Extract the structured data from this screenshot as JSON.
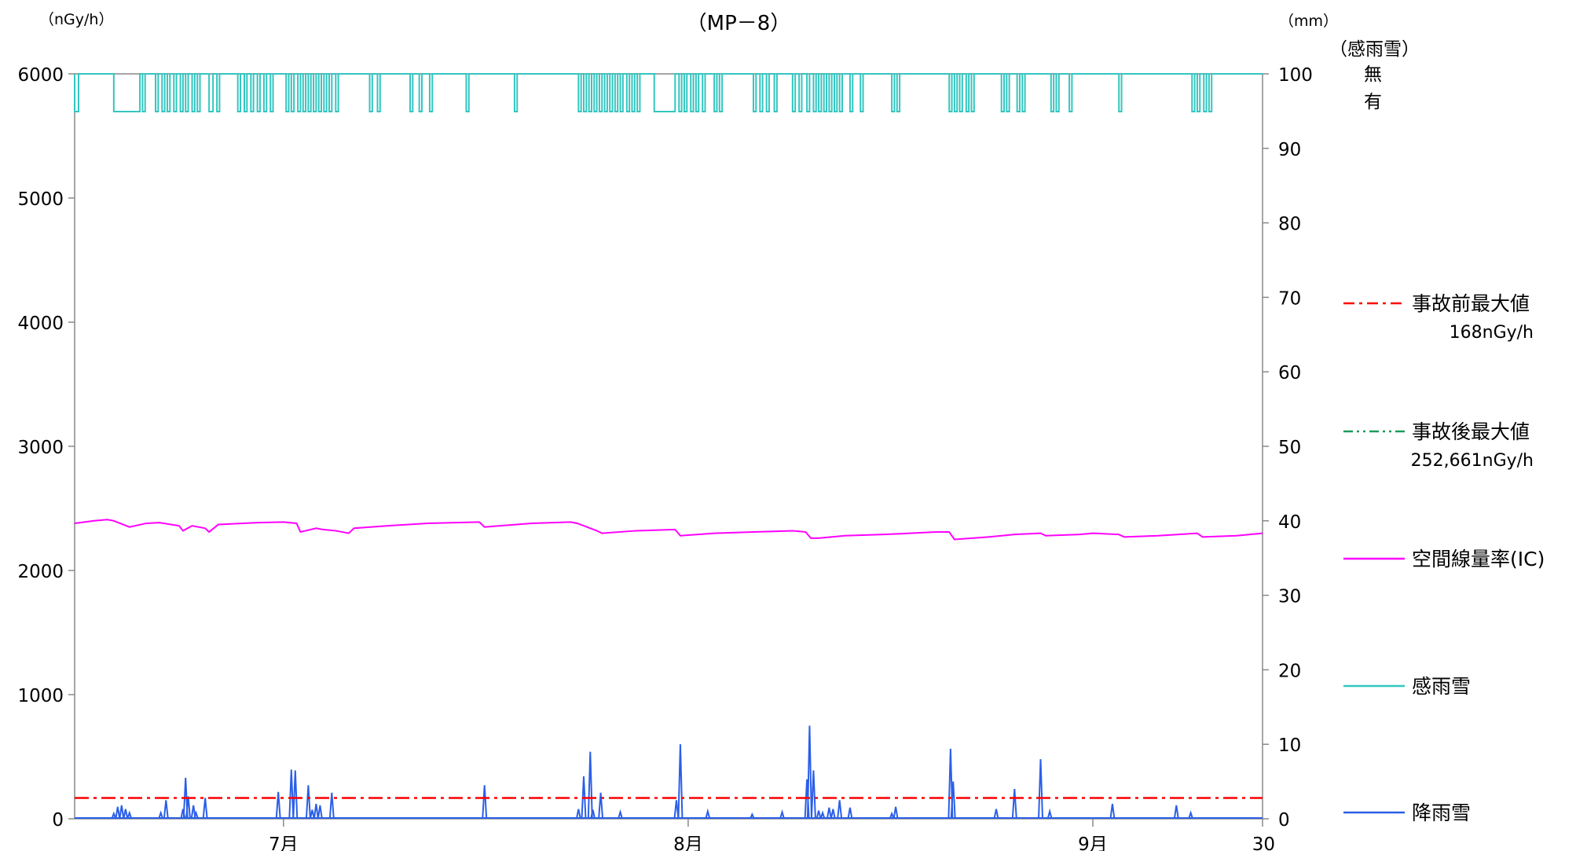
{
  "chart_data": {
    "type": "line",
    "title": "（MP－8）",
    "y_left_unit": "（nGy/h）",
    "y_right_unit": "（mm）",
    "y_right_extra": {
      "title": "（感雨雪）",
      "none": "無",
      "present": "有"
    },
    "ylim_left": [
      0,
      6000
    ],
    "ylim_right": [
      0,
      100
    ],
    "yticks_left": [
      "0",
      "1000",
      "2000",
      "3000",
      "4000",
      "5000",
      "6000"
    ],
    "yticks_right": [
      "0",
      "10",
      "20",
      "30",
      "40",
      "50",
      "60",
      "70",
      "80",
      "90",
      "100"
    ],
    "x_domain_days": [
      0,
      91
    ],
    "x_ticks": [
      {
        "label": "7月",
        "day": 16
      },
      {
        "label": "8月",
        "day": 47
      },
      {
        "label": "9月",
        "day": 78
      },
      {
        "label": "30",
        "day": 91
      }
    ],
    "grid": false,
    "legend_position": "right",
    "legend": [
      {
        "name": "事故前最大値",
        "sub": "168nGy/h",
        "color": "#ff0000",
        "dash": "dashdot"
      },
      {
        "name": "事故後最大値",
        "sub": "252,661nGy/h",
        "color": "#1f9a5a",
        "dash": "dashdotdot"
      },
      {
        "name": "空間線量率(IC)",
        "sub": "",
        "color": "#ff00ff",
        "dash": "solid"
      },
      {
        "name": "感雨雪",
        "sub": "",
        "color": "#33c6c0",
        "dash": "solid"
      },
      {
        "name": "降雨雪",
        "sub": "",
        "color": "#2b5fe8",
        "dash": "solid"
      }
    ],
    "pre_accident_max": 168,
    "series": [
      {
        "name": "空間線量率(IC)",
        "axis": "left",
        "color": "#ff00ff",
        "x": [
          0,
          1.5,
          2.5,
          3.0,
          4.2,
          5.5,
          6.5,
          8.0,
          8.3,
          9.0,
          10.0,
          10.3,
          11.0,
          14.0,
          16.0,
          17.0,
          17.3,
          18.5,
          19.0,
          20.0,
          21.0,
          21.4,
          24.0,
          27.0,
          31.0,
          31.4,
          35.0,
          38.0,
          38.5,
          40.0,
          40.4,
          43.0,
          46.0,
          46.4,
          49.0,
          52.0,
          55.0,
          56.0,
          56.4,
          57.0,
          59.0,
          62.0,
          63.0,
          66.0,
          67.0,
          67.4,
          70.0,
          72.0,
          74.0,
          74.4,
          77.0,
          78.0,
          80.0,
          80.4,
          83.0,
          86.0,
          86.4,
          89.0,
          91.0
        ],
        "values": [
          2380,
          2400,
          2410,
          2400,
          2350,
          2380,
          2385,
          2360,
          2320,
          2360,
          2340,
          2310,
          2370,
          2385,
          2390,
          2380,
          2310,
          2340,
          2330,
          2320,
          2300,
          2340,
          2360,
          2380,
          2390,
          2350,
          2380,
          2390,
          2380,
          2320,
          2300,
          2320,
          2330,
          2280,
          2300,
          2310,
          2320,
          2310,
          2260,
          2260,
          2280,
          2290,
          2295,
          2310,
          2310,
          2250,
          2270,
          2290,
          2300,
          2280,
          2290,
          2300,
          2290,
          2270,
          2280,
          2300,
          2270,
          2280,
          2300
        ]
      },
      {
        "name": "降雨雪",
        "axis": "right",
        "color": "#2b5fe8",
        "x": [
          3.0,
          3.3,
          3.6,
          3.9,
          4.2,
          6.6,
          7.0,
          8.3,
          8.5,
          8.7,
          9.1,
          9.3,
          10.0,
          15.6,
          16.6,
          16.9,
          17.9,
          18.2,
          18.5,
          18.8,
          19.7,
          31.4,
          38.6,
          39.0,
          39.5,
          39.7,
          40.3,
          41.8,
          46.1,
          46.4,
          48.5,
          51.9,
          54.2,
          56.1,
          56.3,
          56.6,
          57.0,
          57.3,
          57.8,
          58.1,
          58.6,
          59.4,
          62.6,
          62.9,
          67.1,
          67.3,
          70.6,
          72.0,
          74.0,
          74.7,
          79.5,
          84.4,
          85.5
        ],
        "values": [
          0.7,
          1.6,
          1.8,
          1.3,
          0.8,
          0.8,
          2.5,
          1.3,
          5.5,
          3.0,
          1.8,
          0.8,
          2.8,
          3.6,
          6.6,
          6.5,
          4.5,
          1.2,
          2.0,
          1.8,
          3.5,
          4.5,
          1.3,
          5.7,
          9.0,
          1.2,
          3.5,
          0.9,
          2.5,
          10.0,
          1.0,
          0.6,
          0.9,
          5.3,
          12.5,
          6.5,
          1.1,
          0.8,
          1.5,
          1.3,
          2.5,
          1.5,
          0.7,
          1.6,
          9.4,
          5.0,
          1.3,
          4.0,
          8.0,
          1.0,
          2.0,
          1.8,
          0.8
        ]
      },
      {
        "name": "感雨雪",
        "axis": "state",
        "color": "#33c6c0",
        "levels": [
          "無",
          "有"
        ],
        "on_intervals": [
          [
            0.0,
            0.3
          ],
          [
            3.0,
            5.0
          ],
          [
            5.2,
            5.4
          ],
          [
            6.2,
            6.4
          ],
          [
            6.7,
            6.9
          ],
          [
            7.1,
            7.3
          ],
          [
            7.6,
            7.8
          ],
          [
            8.1,
            8.3
          ],
          [
            8.5,
            8.7
          ],
          [
            9.0,
            9.2
          ],
          [
            9.4,
            9.6
          ],
          [
            10.3,
            10.6
          ],
          [
            10.9,
            11.1
          ],
          [
            12.5,
            12.7
          ],
          [
            13.0,
            13.2
          ],
          [
            13.5,
            13.7
          ],
          [
            14.0,
            14.2
          ],
          [
            14.5,
            14.7
          ],
          [
            15.0,
            15.2
          ],
          [
            16.2,
            16.4
          ],
          [
            16.6,
            16.8
          ],
          [
            17.1,
            17.3
          ],
          [
            17.5,
            17.7
          ],
          [
            17.9,
            18.1
          ],
          [
            18.3,
            18.5
          ],
          [
            18.7,
            18.9
          ],
          [
            19.1,
            19.3
          ],
          [
            19.5,
            19.7
          ],
          [
            20.0,
            20.2
          ],
          [
            22.6,
            22.8
          ],
          [
            23.2,
            23.4
          ],
          [
            25.7,
            25.9
          ],
          [
            26.4,
            26.6
          ],
          [
            27.2,
            27.4
          ],
          [
            30.0,
            30.2
          ],
          [
            33.7,
            33.9
          ],
          [
            38.6,
            38.8
          ],
          [
            39.0,
            39.2
          ],
          [
            39.4,
            39.6
          ],
          [
            39.8,
            40.0
          ],
          [
            40.2,
            40.4
          ],
          [
            40.6,
            40.8
          ],
          [
            41.0,
            41.2
          ],
          [
            41.4,
            41.6
          ],
          [
            41.8,
            42.0
          ],
          [
            42.3,
            42.5
          ],
          [
            42.7,
            42.9
          ],
          [
            43.1,
            43.3
          ],
          [
            44.4,
            46.0
          ],
          [
            46.3,
            46.5
          ],
          [
            46.7,
            46.9
          ],
          [
            47.2,
            47.4
          ],
          [
            47.6,
            47.8
          ],
          [
            48.1,
            48.3
          ],
          [
            49.0,
            49.2
          ],
          [
            49.4,
            49.6
          ],
          [
            52.0,
            52.2
          ],
          [
            52.5,
            52.7
          ],
          [
            53.0,
            53.2
          ],
          [
            53.6,
            53.8
          ],
          [
            55.0,
            55.2
          ],
          [
            55.5,
            55.7
          ],
          [
            56.1,
            56.3
          ],
          [
            56.6,
            56.8
          ],
          [
            57.0,
            57.2
          ],
          [
            57.4,
            57.6
          ],
          [
            57.8,
            58.0
          ],
          [
            58.2,
            58.4
          ],
          [
            58.6,
            58.8
          ],
          [
            59.4,
            59.6
          ],
          [
            60.2,
            60.4
          ],
          [
            62.6,
            62.8
          ],
          [
            63.0,
            63.2
          ],
          [
            67.0,
            67.2
          ],
          [
            67.4,
            67.6
          ],
          [
            67.8,
            68.0
          ],
          [
            68.3,
            68.5
          ],
          [
            68.7,
            68.9
          ],
          [
            71.0,
            71.2
          ],
          [
            71.4,
            71.6
          ],
          [
            72.2,
            72.4
          ],
          [
            72.6,
            72.8
          ],
          [
            74.8,
            75.0
          ],
          [
            75.2,
            75.4
          ],
          [
            76.2,
            76.4
          ],
          [
            80.0,
            80.2
          ],
          [
            85.6,
            85.8
          ],
          [
            86.0,
            86.2
          ],
          [
            86.5,
            86.7
          ],
          [
            86.9,
            87.1
          ]
        ]
      }
    ]
  }
}
